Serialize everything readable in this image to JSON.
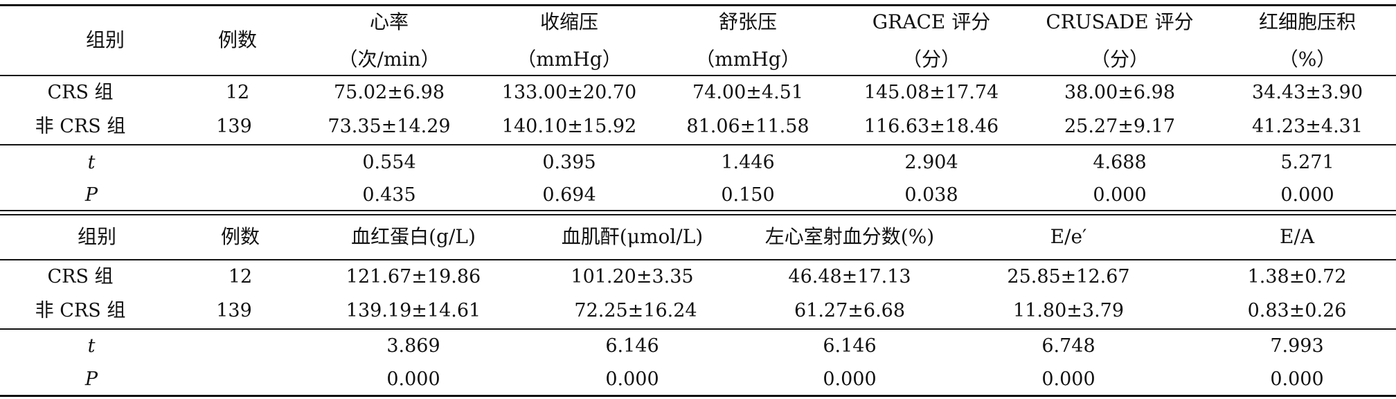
{
  "table1": {
    "header": {
      "group": "组别",
      "count": "例数",
      "cols": [
        {
          "name": "心率",
          "unit": "（次/min）"
        },
        {
          "name": "收缩压",
          "unit": "（mmHg）"
        },
        {
          "name": "舒张压",
          "unit": "（mmHg）"
        },
        {
          "name": "GRACE 评分",
          "unit": "（分）"
        },
        {
          "name": "CRUSADE 评分",
          "unit": "（分）"
        },
        {
          "name": "红细胞压积",
          "unit": "（%）"
        }
      ]
    },
    "rows": [
      {
        "group": "CRS 组",
        "count": "12",
        "values": [
          "75.02±6.98",
          "133.00±20.70",
          "74.00±4.51",
          "145.08±17.74",
          "38.00±6.98",
          "34.43±3.90"
        ]
      },
      {
        "group": "非 CRS 组",
        "count": "139",
        "values": [
          "73.35±14.29",
          "140.10±15.92",
          "81.06±11.58",
          "116.63±18.46",
          "25.27±9.17",
          "41.23±4.31"
        ]
      }
    ],
    "stats": [
      {
        "label": "t",
        "values": [
          "0.554",
          "0.395",
          "1.446",
          "2.904",
          "4.688",
          "5.271"
        ]
      },
      {
        "label": "P",
        "values": [
          "0.435",
          "0.694",
          "0.150",
          "0.038",
          "0.000",
          "0.000"
        ]
      }
    ]
  },
  "table2": {
    "header": {
      "group": "组别",
      "count": "例数",
      "cols": [
        "血红蛋白(g/L)",
        "血肌酐(μmol/L)",
        "左心室射血分数(%)",
        "E/e′",
        "E/A"
      ]
    },
    "rows": [
      {
        "group": "CRS 组",
        "count": "12",
        "values": [
          "121.67±19.86",
          "101.20±3.35",
          "46.48±17.13",
          "25.85±12.67",
          "1.38±0.72"
        ]
      },
      {
        "group": "非 CRS 组",
        "count": "139",
        "values": [
          "139.19±14.61",
          "72.25±16.24",
          "61.27±6.68",
          "11.80±3.79",
          "0.83±0.26"
        ]
      }
    ],
    "stats": [
      {
        "label": "t",
        "values": [
          "3.869",
          "6.146",
          "6.146",
          "6.748",
          "7.993"
        ]
      },
      {
        "label": "P",
        "values": [
          "0.000",
          "0.000",
          "0.000",
          "0.000",
          "0.000"
        ]
      }
    ]
  }
}
